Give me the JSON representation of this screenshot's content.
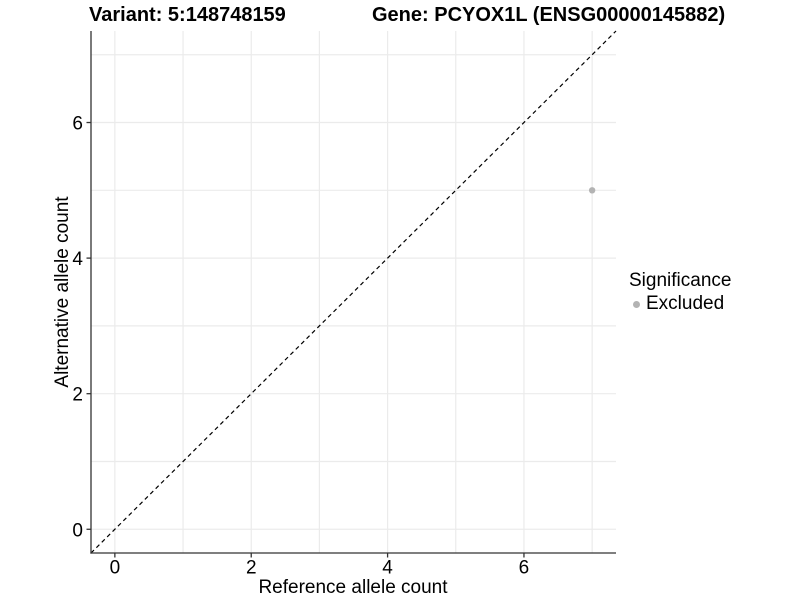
{
  "chart_data": {
    "type": "scatter",
    "title_left": "Variant: 5:148748159",
    "title_right": "Gene: PCYOX1L (ENSG00000145882)",
    "xlabel": "Reference allele count",
    "ylabel": "Alternative allele count",
    "xlim": [
      -0.35,
      7.35
    ],
    "ylim": [
      -0.35,
      7.35
    ],
    "x_ticks": [
      0,
      2,
      4,
      6
    ],
    "y_ticks": [
      0,
      2,
      4,
      6
    ],
    "gridlines_x": [
      0,
      1,
      2,
      3,
      4,
      5,
      6,
      7
    ],
    "gridlines_y": [
      0,
      1,
      2,
      3,
      4,
      5,
      6,
      7
    ],
    "grid": true,
    "series": [
      {
        "name": "Excluded",
        "color": "#b3b3b3",
        "points": [
          {
            "x": 7,
            "y": 5
          }
        ]
      }
    ],
    "reference_line": {
      "style": "dashed",
      "color": "#000000",
      "from": [
        -0.35,
        -0.35
      ],
      "to": [
        7.35,
        7.35
      ]
    },
    "legend": {
      "title": "Significance",
      "position": "right",
      "entries": [
        {
          "label": "Excluded",
          "color": "#b3b3b3"
        }
      ]
    }
  },
  "colors": {
    "background": "#ffffff",
    "gridline": "#ebebeb",
    "axis_line": "#333333",
    "tick_text": "#000000",
    "title_text": "#000000"
  }
}
